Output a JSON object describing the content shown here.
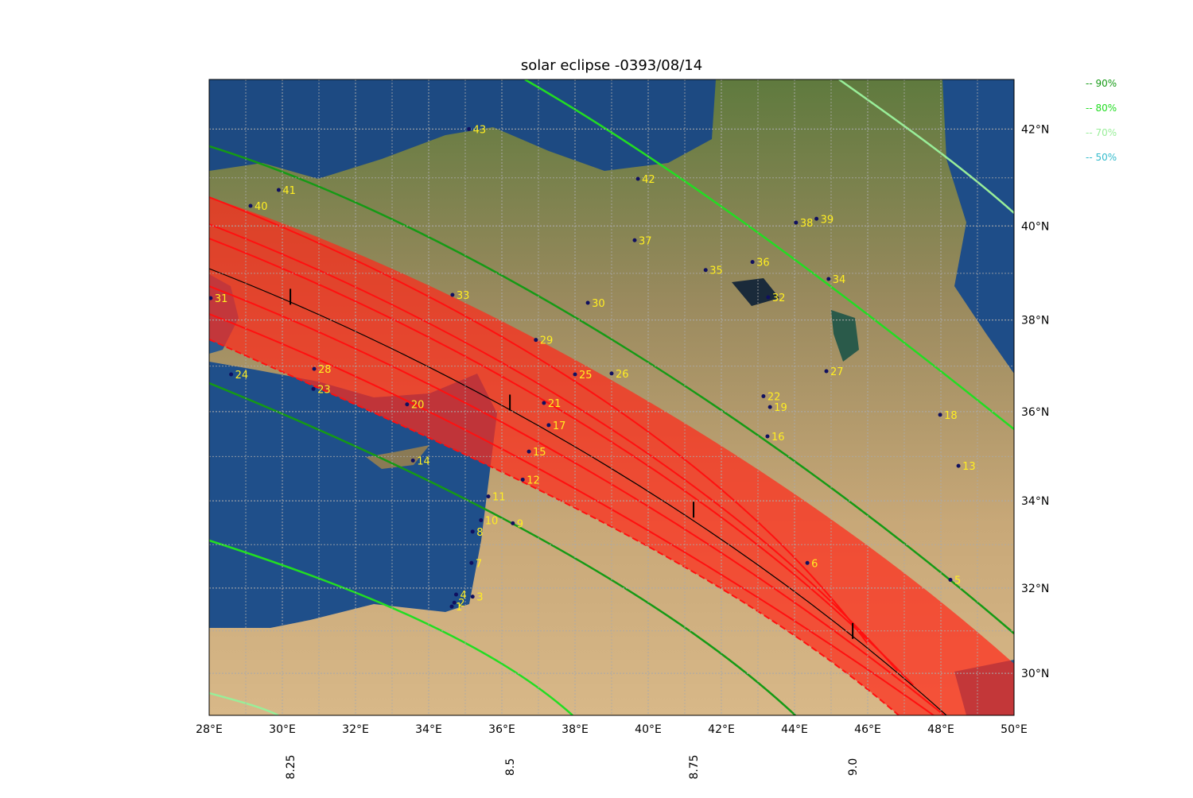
{
  "map": {
    "title": "solar eclipse -0393/08/14",
    "xlim": [
      28,
      50
    ],
    "ylim": [
      29,
      43
    ],
    "xticks": [
      {
        "value": 28,
        "label": "28°E"
      },
      {
        "value": 30,
        "label": "30°E"
      },
      {
        "value": 32,
        "label": "32°E"
      },
      {
        "value": 34,
        "label": "34°E"
      },
      {
        "value": 36,
        "label": "36°E"
      },
      {
        "value": 38,
        "label": "38°E"
      },
      {
        "value": 40,
        "label": "40°E"
      },
      {
        "value": 42,
        "label": "42°E"
      },
      {
        "value": 44,
        "label": "44°E"
      },
      {
        "value": 46,
        "label": "46°E"
      },
      {
        "value": 48,
        "label": "48°E"
      },
      {
        "value": 50,
        "label": "50°E"
      }
    ],
    "yticks": [
      {
        "value": 30,
        "label": "30°N"
      },
      {
        "value": 32,
        "label": "32°N"
      },
      {
        "value": 34,
        "label": "34°N"
      },
      {
        "value": 36,
        "label": "36°N"
      },
      {
        "value": 38,
        "label": "38°N"
      },
      {
        "value": 40,
        "label": "40°N"
      },
      {
        "value": 42,
        "label": "42°N"
      }
    ],
    "time_marks": {
      "ticks": [
        8.25,
        8.5,
        8.75,
        {
          "value": 9,
          "label": "9.0"
        }
      ],
      "lon": [
        30.22,
        36.22,
        41.24,
        45.59
      ],
      "lat": [
        38.5,
        36.2,
        33.8,
        31.0
      ]
    },
    "places": {
      "labels": [
        1,
        2,
        3,
        4,
        5,
        6,
        7,
        8,
        9,
        10,
        11,
        12,
        13,
        14,
        15,
        16,
        17,
        18,
        19,
        20,
        21,
        22,
        23,
        24,
        25,
        26,
        27,
        28,
        29,
        30,
        31,
        32,
        33,
        34,
        35,
        36,
        37,
        38,
        39,
        40,
        41,
        42,
        43
      ],
      "lon": [
        34.63,
        34.7,
        35.2,
        34.75,
        48.26,
        44.35,
        35.17,
        35.2,
        36.3,
        35.43,
        35.63,
        36.57,
        48.48,
        33.57,
        36.74,
        43.26,
        37.28,
        47.98,
        43.33,
        33.41,
        37.15,
        43.15,
        30.85,
        28.6,
        38.0,
        39.0,
        44.87,
        30.87,
        36.93,
        38.35,
        28.04,
        43.28,
        34.65,
        44.93,
        41.57,
        42.85,
        39.63,
        44.04,
        44.6,
        29.13,
        29.9,
        39.72,
        35.1
      ],
      "lat": [
        31.57,
        31.66,
        31.8,
        31.85,
        32.19,
        32.58,
        32.58,
        33.3,
        33.49,
        33.56,
        34.1,
        34.48,
        34.79,
        34.91,
        35.11,
        35.45,
        35.7,
        35.93,
        36.1,
        36.16,
        36.19,
        36.34,
        36.5,
        36.82,
        36.82,
        36.84,
        36.89,
        36.94,
        37.57,
        38.37,
        38.47,
        38.49,
        38.54,
        38.88,
        39.07,
        39.24,
        39.7,
        40.07,
        40.15,
        40.42,
        40.75,
        40.98,
        42.0
      ]
    },
    "legend": [
      {
        "label": "-- 90%",
        "color": "#159a15"
      },
      {
        "label": "-- 80%",
        "color": "#22dd22"
      },
      {
        "label": "-- 70%",
        "color": "#99ee99"
      },
      {
        "label": "-- 50%",
        "color": "#33bbcc"
      }
    ]
  }
}
